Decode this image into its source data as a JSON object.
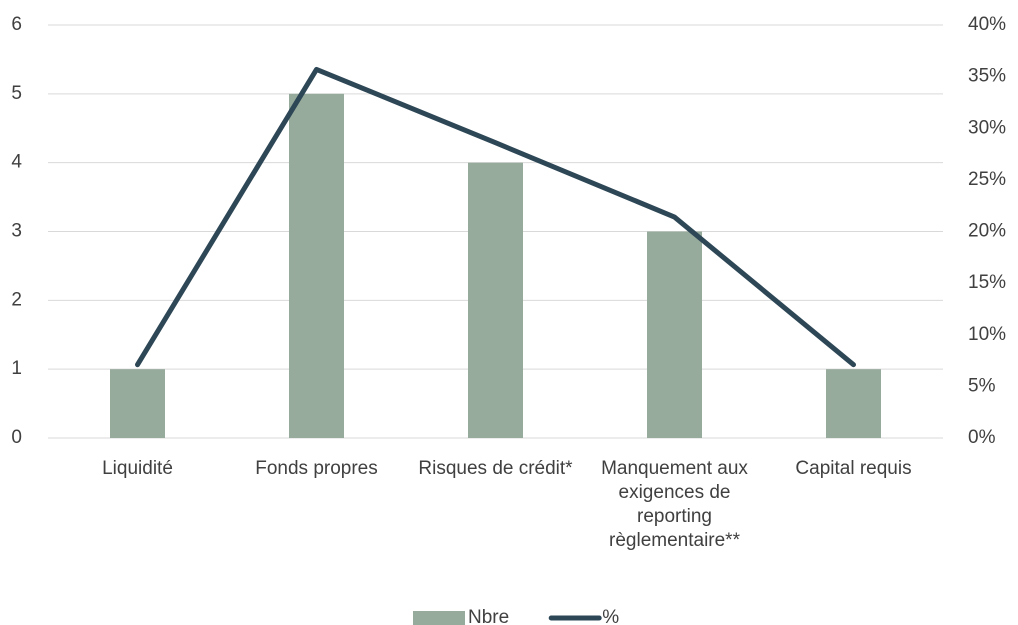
{
  "chart_data": {
    "type": "bar",
    "categories": [
      "Liquidité",
      "Fonds propres",
      "Risques de crédit*",
      "Manquement aux exigences de reporting règlementaire**",
      "Capital requis"
    ],
    "series": [
      {
        "name": "Nbre",
        "type": "bar",
        "color": "#97ab9d",
        "values": [
          1,
          5,
          4,
          3,
          1
        ]
      },
      {
        "name": "%",
        "type": "line",
        "axis": "y2",
        "color": "#2e4756",
        "values": [
          7.1,
          35.7,
          28.6,
          21.4,
          7.1
        ]
      }
    ],
    "ylim": [
      0,
      6
    ],
    "yticks": [
      0,
      1,
      2,
      3,
      4,
      5,
      6
    ],
    "y2lim": [
      0,
      40
    ],
    "y2ticks": [
      {
        "value": 0,
        "label": "0%"
      },
      {
        "value": 5,
        "label": "5%"
      },
      {
        "value": 10,
        "label": "10%"
      },
      {
        "value": 15,
        "label": "15%"
      },
      {
        "value": 20,
        "label": "20%"
      },
      {
        "value": 25,
        "label": "25%"
      },
      {
        "value": 30,
        "label": "30%"
      },
      {
        "value": 35,
        "label": "35%"
      },
      {
        "value": 40,
        "label": "40%"
      }
    ],
    "grid": true,
    "legend": "bottom"
  }
}
